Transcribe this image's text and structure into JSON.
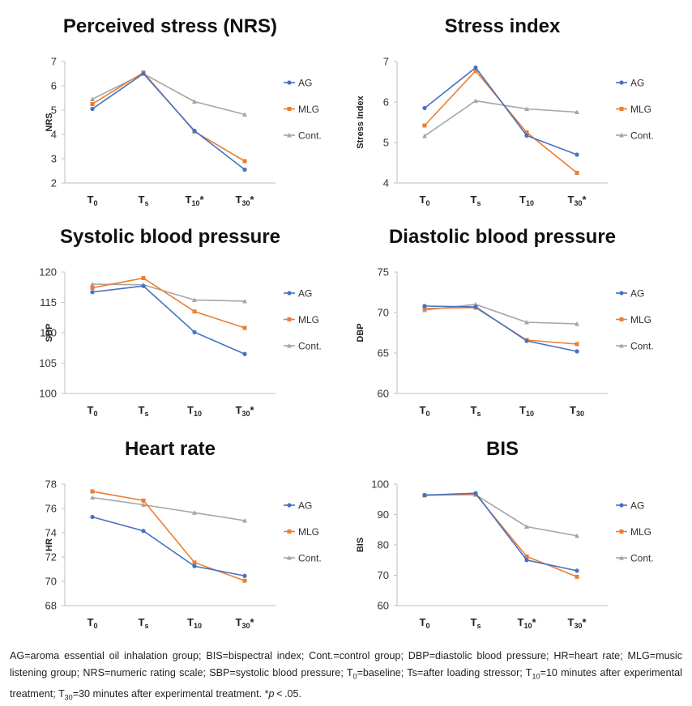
{
  "colors": {
    "AG": "#4472C4",
    "MLG": "#ED7D31",
    "Cont.": "#A5A5A5",
    "axis": "#BFBFBF"
  },
  "chart_data": [
    {
      "type": "line",
      "title": "Perceived stress (NRS)",
      "ylabel": "NRS",
      "categories": [
        "T",
        "T",
        "T",
        "T"
      ],
      "category_subs": [
        "0",
        "s",
        "10",
        "30"
      ],
      "category_marks": [
        "",
        "",
        "*",
        "*"
      ],
      "ylim": [
        2,
        7
      ],
      "yticks": [
        "2",
        "3",
        "4",
        "5",
        "6",
        "7"
      ],
      "series": [
        {
          "name": "AG",
          "values": [
            5.05,
            6.5,
            4.15,
            2.55
          ]
        },
        {
          "name": "MLG",
          "values": [
            5.25,
            6.55,
            4.12,
            2.9
          ]
        },
        {
          "name": "Cont.",
          "values": [
            5.45,
            6.5,
            5.35,
            4.82
          ]
        }
      ]
    },
    {
      "type": "line",
      "title": "Stress index",
      "ylabel": "Stress Index",
      "categories": [
        "T",
        "T",
        "T",
        "T"
      ],
      "category_subs": [
        "0",
        "s",
        "10",
        "30"
      ],
      "category_marks": [
        "",
        "",
        "",
        "*"
      ],
      "ylim": [
        4,
        7
      ],
      "yticks": [
        "4",
        "5",
        "6",
        "7"
      ],
      "series": [
        {
          "name": "AG",
          "values": [
            5.85,
            6.85,
            5.17,
            4.7
          ]
        },
        {
          "name": "MLG",
          "values": [
            5.42,
            6.77,
            5.25,
            4.25
          ]
        },
        {
          "name": "Cont.",
          "values": [
            5.16,
            6.03,
            5.83,
            5.75
          ]
        }
      ]
    },
    {
      "type": "line",
      "title": "Systolic blood pressure",
      "ylabel": "SBP",
      "categories": [
        "T",
        "T",
        "T",
        "T"
      ],
      "category_subs": [
        "0",
        "s",
        "10",
        "30"
      ],
      "category_marks": [
        "",
        "",
        "",
        "*"
      ],
      "ylim": [
        100,
        120
      ],
      "yticks": [
        "100",
        "105",
        "110",
        "115",
        "120"
      ],
      "series": [
        {
          "name": "AG",
          "values": [
            116.7,
            117.7,
            110.1,
            106.5
          ]
        },
        {
          "name": "MLG",
          "values": [
            117.4,
            119.0,
            113.5,
            110.8
          ]
        },
        {
          "name": "Cont.",
          "values": [
            118.0,
            117.9,
            115.4,
            115.2
          ]
        }
      ]
    },
    {
      "type": "line",
      "title": "Diastolic blood pressure",
      "ylabel": "DBP",
      "categories": [
        "T",
        "T",
        "T",
        "T"
      ],
      "category_subs": [
        "0",
        "s",
        "10",
        "30"
      ],
      "category_marks": [
        "",
        "",
        "",
        ""
      ],
      "ylim": [
        60,
        75
      ],
      "yticks": [
        "60",
        "65",
        "70",
        "75"
      ],
      "series": [
        {
          "name": "AG",
          "values": [
            70.8,
            70.7,
            66.5,
            65.2
          ]
        },
        {
          "name": "MLG",
          "values": [
            70.5,
            70.6,
            66.6,
            66.1
          ]
        },
        {
          "name": "Cont.",
          "values": [
            70.3,
            71.0,
            68.8,
            68.6
          ]
        }
      ]
    },
    {
      "type": "line",
      "title": "Heart rate",
      "ylabel": "HR",
      "categories": [
        "T",
        "T",
        "T",
        "T"
      ],
      "category_subs": [
        "0",
        "s",
        "10",
        "30"
      ],
      "category_marks": [
        "",
        "",
        "",
        "*"
      ],
      "ylim": [
        68,
        78
      ],
      "yticks": [
        "68",
        "70",
        "72",
        "74",
        "76",
        "78"
      ],
      "series": [
        {
          "name": "AG",
          "values": [
            75.3,
            74.15,
            71.25,
            70.45
          ]
        },
        {
          "name": "MLG",
          "values": [
            77.4,
            76.65,
            71.55,
            70.05
          ]
        },
        {
          "name": "Cont.",
          "values": [
            76.9,
            76.3,
            75.65,
            75.0
          ]
        }
      ]
    },
    {
      "type": "line",
      "title": "BIS",
      "ylabel": "BIS",
      "categories": [
        "T",
        "T",
        "T",
        "T"
      ],
      "category_subs": [
        "0",
        "s",
        "10",
        "30"
      ],
      "category_marks": [
        "",
        "",
        "*",
        "*"
      ],
      "ylim": [
        60,
        100
      ],
      "yticks": [
        "60",
        "70",
        "80",
        "90",
        "100"
      ],
      "series": [
        {
          "name": "AG",
          "values": [
            96.4,
            97.0,
            75.0,
            71.5
          ]
        },
        {
          "name": "MLG",
          "values": [
            96.3,
            96.7,
            76.2,
            69.5
          ]
        },
        {
          "name": "Cont.",
          "values": [
            96.5,
            96.5,
            86.0,
            83.0
          ]
        }
      ]
    }
  ],
  "footnote": [
    {
      "t": "AG=aroma essential oil inhalation group; BIS=bispectral index; Cont.=control group; DBP=diastolic blood pressure; HR=heart rate; MLG=music listening group; NRS=numeric rating scale; SBP=systolic blood pressure; T"
    },
    {
      "sub": "0"
    },
    {
      "t": "=baseline; Ts=after loading stressor; T"
    },
    {
      "sub": "10"
    },
    {
      "t": "=10 minutes after experimental treatment; T"
    },
    {
      "sub": "30"
    },
    {
      "t": "=30 minutes after experimental treatment. *"
    },
    {
      "i": "p"
    },
    {
      "t": " < .05."
    }
  ]
}
